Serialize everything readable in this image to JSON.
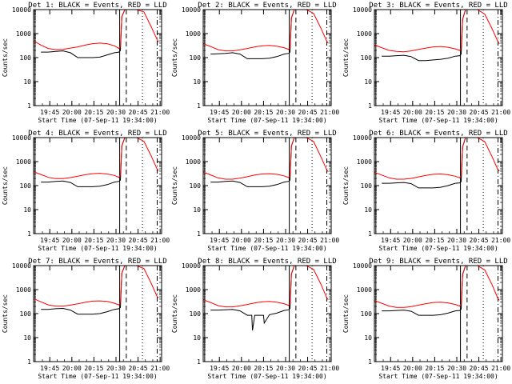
{
  "chart_data": {
    "type": "line",
    "layout": "3x3 grid of panels",
    "y_scale": "log",
    "ylim": [
      1,
      10000
    ],
    "ylabel": "Counts/sec",
    "y_tick_labels": [
      "1",
      "10",
      "100",
      "1000",
      "10000"
    ],
    "x_tick_labels": [
      "19:45",
      "20:00",
      "20:15",
      "20:30",
      "20:45",
      "21:00"
    ],
    "xlabel": "Start Time (07-Sep-11 19:34:00)",
    "colors": {
      "events": "#000000",
      "lld": "#ff0000",
      "axes": "#000000",
      "background": "#ffffff"
    },
    "panels": [
      {
        "title": "Det 1: BLACK = Events, RED = LLD",
        "series": [
          {
            "name": "BLACK = Events",
            "x": [
              5,
              10,
              15,
              20,
              25,
              30,
              35,
              40,
              45,
              50,
              55,
              58,
              59,
              60,
              62,
              65,
              68,
              70,
              73
            ],
            "values": [
              170,
              170,
              180,
              190,
              160,
              100,
              100,
              100,
              105,
              130,
              160,
              170,
              200,
              5000,
              10000,
              10000,
              10000,
              10000,
              10000
            ]
          },
          {
            "name": "RED = LLD",
            "x": [
              0,
              5,
              10,
              15,
              20,
              25,
              30,
              35,
              40,
              45,
              50,
              55,
              58,
              59,
              60,
              62,
              65,
              70,
              75,
              80,
              84,
              85
            ],
            "values": [
              500,
              330,
              240,
              215,
              220,
              250,
              280,
              330,
              380,
              400,
              380,
              310,
              240,
              300,
              5000,
              10000,
              10000,
              10000,
              8000,
              1900,
              550,
              450
            ]
          }
        ]
      },
      {
        "title": "Det 2: BLACK = Events, RED = LLD",
        "series": [
          {
            "name": "BLACK = Events",
            "x": [
              5,
              10,
              15,
              20,
              25,
              30,
              35,
              40,
              45,
              50,
              55,
              58,
              59,
              60,
              62,
              65,
              68,
              70,
              73
            ],
            "values": [
              140,
              145,
              150,
              160,
              140,
              90,
              90,
              90,
              95,
              110,
              140,
              150,
              170,
              4500,
              10000,
              10000,
              10000,
              10000,
              10000
            ]
          },
          {
            "name": "RED = LLD",
            "x": [
              0,
              5,
              10,
              15,
              20,
              25,
              30,
              35,
              40,
              45,
              50,
              55,
              58,
              59,
              60,
              62,
              65,
              70,
              75,
              80,
              84,
              85
            ],
            "values": [
              380,
              290,
              215,
              190,
              190,
              210,
              240,
              280,
              310,
              320,
              300,
              260,
              220,
              280,
              4500,
              10000,
              10000,
              10000,
              7000,
              1700,
              480,
              400
            ]
          }
        ]
      },
      {
        "title": "Det 3: BLACK = Events, RED = LLD",
        "series": [
          {
            "name": "BLACK = Events",
            "x": [
              5,
              10,
              15,
              20,
              25,
              30,
              35,
              40,
              45,
              50,
              55,
              58,
              59,
              60,
              62,
              65,
              68,
              70,
              73
            ],
            "values": [
              115,
              115,
              120,
              125,
              110,
              75,
              75,
              80,
              85,
              95,
              115,
              120,
              140,
              4000,
              10000,
              10000,
              10000,
              10000,
              10000
            ]
          },
          {
            "name": "RED = LLD",
            "x": [
              0,
              5,
              10,
              15,
              20,
              25,
              30,
              35,
              40,
              45,
              50,
              55,
              58,
              59,
              60,
              62,
              65,
              70,
              75,
              80,
              84,
              85
            ],
            "values": [
              340,
              260,
              200,
              180,
              175,
              190,
              220,
              250,
              280,
              290,
              270,
              230,
              200,
              250,
              4000,
              10000,
              10000,
              10000,
              6500,
              1600,
              450,
              380
            ]
          }
        ]
      },
      {
        "title": "Det 4: BLACK = Events, RED = LLD",
        "series": [
          {
            "name": "BLACK = Events",
            "x": [
              5,
              10,
              15,
              20,
              25,
              30,
              35,
              40,
              45,
              50,
              55,
              58,
              59,
              60,
              62,
              65,
              68,
              70,
              73
            ],
            "values": [
              140,
              140,
              150,
              155,
              135,
              90,
              90,
              90,
              95,
              110,
              140,
              150,
              170,
              4500,
              10000,
              10000,
              10000,
              10000,
              10000
            ]
          },
          {
            "name": "RED = LLD",
            "x": [
              0,
              5,
              10,
              15,
              20,
              25,
              30,
              35,
              40,
              45,
              50,
              55,
              58,
              59,
              60,
              62,
              65,
              70,
              75,
              80,
              84,
              85
            ],
            "values": [
              380,
              290,
              220,
              195,
              195,
              215,
              245,
              285,
              315,
              325,
              305,
              265,
              220,
              280,
              4500,
              10000,
              10000,
              10000,
              7000,
              1700,
              480,
              420
            ]
          }
        ]
      },
      {
        "title": "Det 5: BLACK = Events, RED = LLD",
        "series": [
          {
            "name": "BLACK = Events",
            "x": [
              5,
              10,
              15,
              20,
              25,
              30,
              35,
              40,
              45,
              50,
              55,
              58,
              59,
              60,
              62,
              65,
              68,
              70,
              73
            ],
            "values": [
              140,
              140,
              150,
              155,
              135,
              90,
              90,
              90,
              95,
              110,
              140,
              150,
              170,
              4500,
              10000,
              10000,
              10000,
              10000,
              10000
            ]
          },
          {
            "name": "RED = LLD",
            "x": [
              0,
              5,
              10,
              15,
              20,
              25,
              30,
              35,
              40,
              45,
              50,
              55,
              58,
              59,
              60,
              62,
              65,
              70,
              75,
              80,
              84,
              85
            ],
            "values": [
              370,
              280,
              210,
              185,
              185,
              205,
              235,
              275,
              305,
              315,
              295,
              255,
              215,
              270,
              4500,
              10000,
              10000,
              10000,
              7000,
              1600,
              450,
              380
            ]
          }
        ]
      },
      {
        "title": "Det 6: BLACK = Events, RED = LLD",
        "series": [
          {
            "name": "BLACK = Events",
            "x": [
              5,
              10,
              15,
              20,
              25,
              30,
              35,
              40,
              45,
              50,
              55,
              58,
              59,
              60,
              62,
              65,
              68,
              70,
              73
            ],
            "values": [
              125,
              125,
              130,
              135,
              120,
              80,
              80,
              80,
              85,
              100,
              125,
              130,
              150,
              4200,
              10000,
              10000,
              10000,
              10000,
              10000
            ]
          },
          {
            "name": "RED = LLD",
            "x": [
              0,
              5,
              10,
              15,
              20,
              25,
              30,
              35,
              40,
              45,
              50,
              55,
              58,
              59,
              60,
              62,
              65,
              70,
              75,
              80,
              84,
              85
            ],
            "values": [
              360,
              275,
              210,
              185,
              185,
              200,
              230,
              265,
              295,
              305,
              285,
              245,
              210,
              265,
              4200,
              10000,
              10000,
              10000,
              6800,
              1600,
              450,
              400
            ]
          }
        ]
      },
      {
        "title": "Det 7: BLACK = Events, RED = LLD",
        "series": [
          {
            "name": "BLACK = Events",
            "x": [
              5,
              10,
              15,
              20,
              25,
              30,
              35,
              40,
              45,
              50,
              55,
              58,
              59,
              60,
              62,
              65,
              68,
              70,
              73
            ],
            "values": [
              150,
              150,
              160,
              165,
              140,
              95,
              95,
              95,
              100,
              120,
              150,
              160,
              180,
              4800,
              10000,
              10000,
              10000,
              10000,
              10000
            ]
          },
          {
            "name": "RED = LLD",
            "x": [
              0,
              5,
              10,
              15,
              20,
              25,
              30,
              35,
              40,
              45,
              50,
              55,
              58,
              59,
              60,
              62,
              65,
              70,
              75,
              80,
              84,
              85
            ],
            "values": [
              420,
              310,
              230,
              205,
              205,
              225,
              255,
              295,
              330,
              340,
              320,
              270,
              230,
              290,
              4800,
              10000,
              10000,
              10000,
              7500,
              1800,
              500,
              460
            ]
          }
        ]
      },
      {
        "title": "Det 8: BLACK = Events, RED = LLD",
        "series": [
          {
            "name": "BLACK = Events",
            "x": [
              5,
              10,
              15,
              20,
              25,
              30,
              33,
              33.5,
              35,
              40,
              41,
              41.5,
              45,
              50,
              55,
              58,
              59,
              60,
              62,
              65,
              68,
              70,
              73
            ],
            "values": [
              140,
              140,
              145,
              150,
              130,
              85,
              85,
              20,
              85,
              85,
              85,
              40,
              90,
              105,
              135,
              145,
              165,
              4500,
              10000,
              10000,
              10000,
              10000,
              10000
            ]
          },
          {
            "name": "RED = LLD",
            "x": [
              0,
              5,
              10,
              15,
              20,
              25,
              30,
              35,
              40,
              45,
              50,
              55,
              58,
              59,
              60,
              62,
              65,
              70,
              75,
              80,
              84,
              85
            ],
            "values": [
              380,
              290,
              215,
              190,
              190,
              210,
              240,
              280,
              310,
              320,
              300,
              260,
              220,
              280,
              4500,
              10000,
              10000,
              10000,
              7000,
              1700,
              450,
              380
            ]
          }
        ]
      },
      {
        "title": "Det 9: BLACK = Events, RED = LLD",
        "series": [
          {
            "name": "BLACK = Events",
            "x": [
              5,
              10,
              15,
              20,
              25,
              30,
              35,
              40,
              45,
              50,
              55,
              58,
              59,
              60,
              62,
              65,
              68,
              70,
              73
            ],
            "values": [
              130,
              130,
              135,
              140,
              125,
              85,
              85,
              85,
              90,
              105,
              130,
              135,
              155,
              4300,
              10000,
              10000,
              10000,
              10000,
              10000
            ]
          },
          {
            "name": "RED = LLD",
            "x": [
              0,
              5,
              10,
              15,
              20,
              25,
              30,
              35,
              40,
              45,
              50,
              55,
              58,
              59,
              60,
              62,
              65,
              70,
              75,
              80,
              84,
              85
            ],
            "values": [
              350,
              270,
              205,
              180,
              180,
              195,
              225,
              260,
              290,
              300,
              280,
              240,
              205,
              260,
              4300,
              10000,
              10000,
              10000,
              6600,
              1600,
              420,
              360
            ]
          }
        ]
      }
    ]
  }
}
